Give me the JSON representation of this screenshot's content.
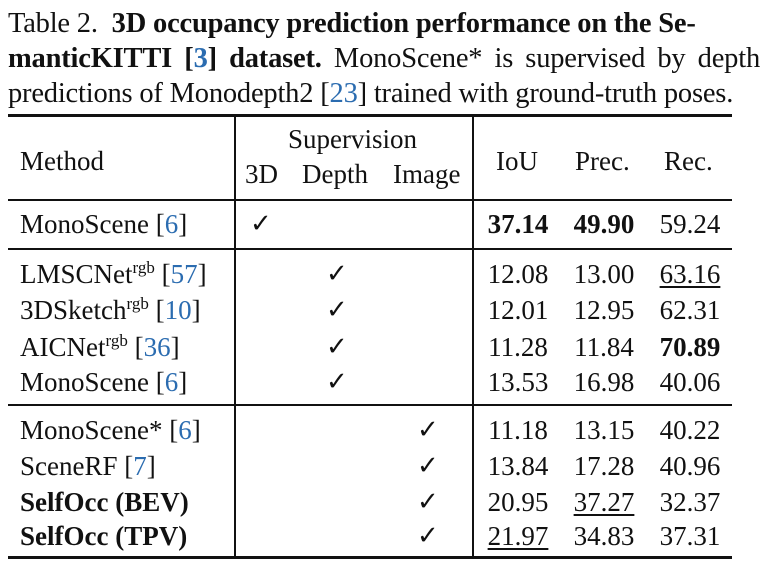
{
  "caption": {
    "label": "Table 2.",
    "bold_title": "3D occupancy prediction performance on the SemanticKITTI [3] dataset.",
    "title_part1": "3D occupancy prediction performance on the Se-",
    "title_part2a": "manticKITTI [",
    "title_ref": "3",
    "title_part2b": "] dataset.",
    "text_a": "MonoScene* is supervised by depth predictions of Monodepth2 [",
    "text_ref": "23",
    "text_b": "] trained with ground-truth poses."
  },
  "table": {
    "header": {
      "method": "Method",
      "supervision": "Supervision",
      "sup_3d": "3D",
      "sup_depth": "Depth",
      "sup_image": "Image",
      "iou": "IoU",
      "prec": "Prec.",
      "rec": "Rec."
    },
    "check_mark": "✓",
    "groups": [
      {
        "rows": [
          {
            "name": "MonoScene",
            "sup": "",
            "ref": "6",
            "supervision": "3D",
            "iou": "37.14",
            "prec": "49.90",
            "rec": "59.24",
            "iou_style": "bold",
            "prec_style": "bold",
            "rec_style": ""
          }
        ]
      },
      {
        "rows": [
          {
            "name": "LMSCNet",
            "sup": "rgb",
            "ref": "57",
            "supervision": "Depth",
            "iou": "12.08",
            "prec": "13.00",
            "rec": "63.16",
            "rec_style": "underline"
          },
          {
            "name": "3DSketch",
            "sup": "rgb",
            "ref": "10",
            "supervision": "Depth",
            "iou": "12.01",
            "prec": "12.95",
            "rec": "62.31"
          },
          {
            "name": "AICNet",
            "sup": "rgb",
            "ref": "36",
            "supervision": "Depth",
            "iou": "11.28",
            "prec": "11.84",
            "rec": "70.89",
            "rec_style": "bold"
          },
          {
            "name": "MonoScene",
            "sup": "",
            "ref": "6",
            "supervision": "Depth",
            "iou": "13.53",
            "prec": "16.98",
            "rec": "40.06"
          }
        ]
      },
      {
        "rows": [
          {
            "name": "MonoScene*",
            "sup": "",
            "ref": "6",
            "supervision": "Image",
            "iou": "11.18",
            "prec": "13.15",
            "rec": "40.22"
          },
          {
            "name": "SceneRF",
            "sup": "",
            "ref": "7",
            "supervision": "Image",
            "iou": "13.84",
            "prec": "17.28",
            "rec": "40.96"
          },
          {
            "name": "SelfOcc (BEV)",
            "sup": "",
            "ref": "",
            "supervision": "Image",
            "name_style": "bold",
            "iou": "20.95",
            "prec": "37.27",
            "rec": "32.37",
            "prec_style": "underline"
          },
          {
            "name": "SelfOcc (TPV)",
            "sup": "",
            "ref": "",
            "supervision": "Image",
            "name_style": "bold",
            "iou": "21.97",
            "prec": "34.83",
            "rec": "37.31",
            "iou_style": "underline"
          }
        ]
      }
    ]
  }
}
